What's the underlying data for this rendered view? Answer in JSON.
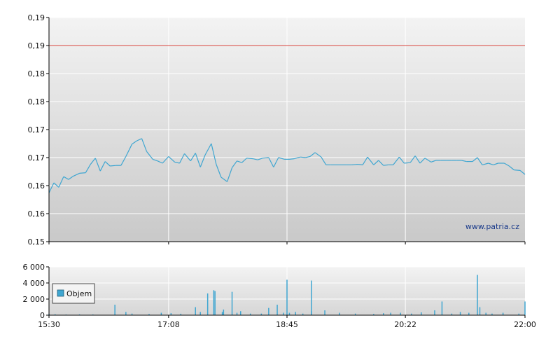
{
  "chart_data": [
    {
      "type": "line",
      "x_ticks": [
        "15:30",
        "17:08",
        "18:45",
        "20:22",
        "22:00"
      ],
      "y_tick_labels": [
        "0,15",
        "0,16",
        "0,16",
        "0,17",
        "0,17",
        "0,18",
        "0,18",
        "0,19",
        "0,19"
      ],
      "ylim": [
        0.15,
        0.19
      ],
      "grid": true,
      "watermark": "www.patria.cz",
      "colors": {
        "price": "#3fa6d1",
        "reference": "#d9443d",
        "grid": "#ffffff",
        "axis": "#000000"
      },
      "reference_line": {
        "value": 0.185
      },
      "series": [
        {
          "x": [
            "15:30",
            "15:34",
            "15:38",
            "15:42",
            "15:46",
            "15:50",
            "15:55",
            "16:00",
            "16:04",
            "16:08",
            "16:12",
            "16:16",
            "16:20",
            "16:25",
            "16:29",
            "16:33",
            "16:38",
            "16:42",
            "16:46",
            "16:50",
            "16:55",
            "16:59",
            "17:03",
            "17:08",
            "17:13",
            "17:17",
            "17:21",
            "17:26",
            "17:30",
            "17:34",
            "17:38",
            "17:43",
            "17:47",
            "17:51",
            "17:56",
            "18:00",
            "18:04",
            "18:08",
            "18:12",
            "18:17",
            "18:21",
            "18:25",
            "18:30",
            "18:34",
            "18:38",
            "18:43",
            "18:47",
            "18:51",
            "18:56",
            "19:00",
            "19:04",
            "19:08",
            "19:13",
            "19:17",
            "19:21",
            "19:26",
            "19:30",
            "19:34",
            "19:38",
            "19:43",
            "19:47",
            "19:51",
            "19:56",
            "20:00",
            "20:04",
            "20:08",
            "20:12",
            "20:17",
            "20:21",
            "20:26",
            "20:30",
            "20:34",
            "20:38",
            "20:43",
            "20:47",
            "20:51",
            "20:56",
            "21:00",
            "21:04",
            "21:08",
            "21:12",
            "21:17",
            "21:21",
            "21:25",
            "21:30",
            "21:34",
            "21:38",
            "21:43",
            "21:47",
            "21:51",
            "21:56",
            "22:00"
          ],
          "values": [
            0.1587,
            0.1605,
            0.1597,
            0.1616,
            0.1611,
            0.1617,
            0.1622,
            0.1623,
            0.1638,
            0.1649,
            0.1626,
            0.1643,
            0.1635,
            0.1636,
            0.1636,
            0.1652,
            0.1674,
            0.168,
            0.1684,
            0.1661,
            0.1647,
            0.1644,
            0.164,
            0.1652,
            0.1642,
            0.164,
            0.1657,
            0.1644,
            0.1658,
            0.1633,
            0.1655,
            0.1675,
            0.1638,
            0.1615,
            0.1607,
            0.1632,
            0.1644,
            0.1641,
            0.1649,
            0.1648,
            0.1646,
            0.1649,
            0.165,
            0.1633,
            0.165,
            0.1647,
            0.1647,
            0.1648,
            0.1651,
            0.165,
            0.1652,
            0.1659,
            0.1651,
            0.1637,
            0.1637,
            0.1637,
            0.1637,
            0.1637,
            0.1637,
            0.1638,
            0.1637,
            0.1651,
            0.1637,
            0.1645,
            0.1636,
            0.1637,
            0.1637,
            0.1651,
            0.164,
            0.1641,
            0.1653,
            0.164,
            0.1649,
            0.1642,
            0.1645,
            0.1645,
            0.1645,
            0.1645,
            0.1645,
            0.1645,
            0.1643,
            0.1643,
            0.165,
            0.1637,
            0.164,
            0.1637,
            0.164,
            0.164,
            0.1635,
            0.1628,
            0.1627,
            0.162
          ]
        }
      ]
    },
    {
      "type": "bar",
      "x_ticks": [
        "15:30",
        "17:08",
        "18:45",
        "20:22",
        "22:00"
      ],
      "y_tick_labels": [
        "0",
        "2 000",
        "4 000",
        "6 000"
      ],
      "ylim": [
        0,
        6000
      ],
      "grid": true,
      "legend": {
        "position": "left",
        "entries": [
          "Objem"
        ]
      },
      "colors": {
        "bars": "#3fa6d1"
      },
      "series": [
        {
          "name": "Objem",
          "x": [
            "15:30",
            "15:35",
            "15:44",
            "15:55",
            "16:06",
            "16:24",
            "16:33",
            "16:38",
            "16:52",
            "17:02",
            "17:10",
            "17:18",
            "17:30",
            "17:34",
            "17:40",
            "17:45",
            "17:46",
            "17:52",
            "17:53",
            "18:00",
            "18:04",
            "18:07",
            "18:15",
            "18:24",
            "18:30",
            "18:37",
            "18:42",
            "18:45",
            "18:47",
            "18:52",
            "18:58",
            "19:05",
            "19:05",
            "19:16",
            "19:28",
            "19:41",
            "19:56",
            "20:04",
            "20:10",
            "20:18",
            "20:27",
            "20:35",
            "20:46",
            "20:52",
            "21:00",
            "21:07",
            "21:14",
            "21:21",
            "21:23",
            "21:28",
            "21:33",
            "21:42",
            "21:55",
            "22:00"
          ],
          "values": [
            150,
            120,
            80,
            100,
            90,
            1300,
            400,
            200,
            150,
            300,
            250,
            180,
            1000,
            400,
            2700,
            3100,
            3000,
            400,
            700,
            2900,
            300,
            500,
            200,
            200,
            900,
            1300,
            300,
            4400,
            300,
            400,
            200,
            4300,
            500,
            600,
            300,
            200,
            150,
            250,
            300,
            300,
            200,
            350,
            600,
            1700,
            200,
            400,
            300,
            5000,
            1000,
            300,
            200,
            300,
            200,
            1700
          ]
        }
      ]
    }
  ]
}
